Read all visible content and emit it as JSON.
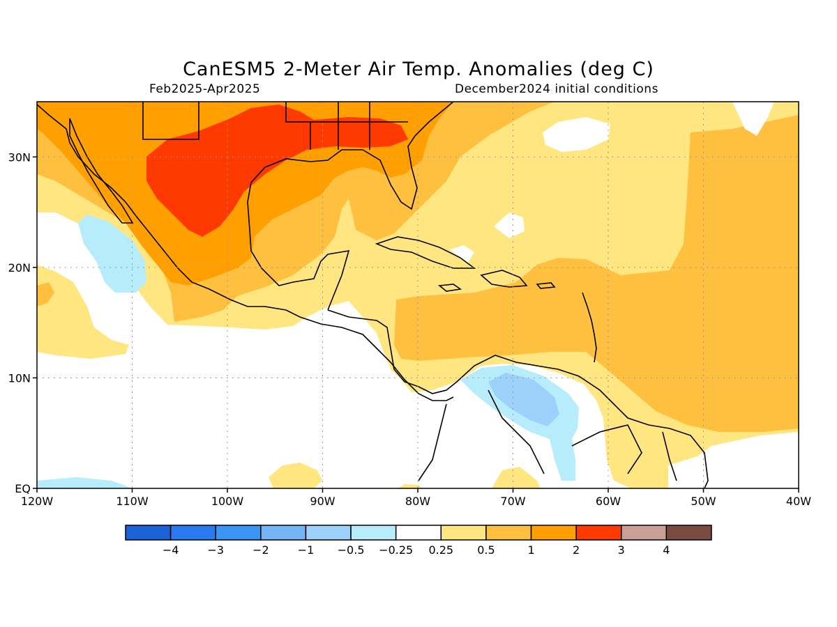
{
  "header": {
    "title": "CanESM5 2-Meter Air Temp. Anomalies (deg C)",
    "period": "Feb2025-Apr2025",
    "initial_conditions": "December2024 initial conditions"
  },
  "map": {
    "region": "Central America / Caribbean / Gulf of Mexico",
    "lon_range": [
      -120,
      -40
    ],
    "lat_range": [
      0,
      35
    ],
    "lon_ticks": [
      {
        "lon": -120,
        "label": "120W"
      },
      {
        "lon": -110,
        "label": "110W"
      },
      {
        "lon": -100,
        "label": "100W"
      },
      {
        "lon": -90,
        "label": "90W"
      },
      {
        "lon": -80,
        "label": "80W"
      },
      {
        "lon": -70,
        "label": "70W"
      },
      {
        "lon": -60,
        "label": "60W"
      },
      {
        "lon": -50,
        "label": "50W"
      },
      {
        "lon": -40,
        "label": "40W"
      }
    ],
    "lat_ticks": [
      {
        "lat": 0,
        "label": "EQ"
      },
      {
        "lat": 10,
        "label": "10N"
      },
      {
        "lat": 20,
        "label": "20N"
      },
      {
        "lat": 30,
        "label": "30N"
      }
    ],
    "grid": true
  },
  "legend": {
    "colors": [
      "#1963d6",
      "#2a79ee",
      "#3c94f4",
      "#76b5f5",
      "#9dd0fb",
      "#b6ecfb",
      "#ffffff",
      "#ffe680",
      "#ffc03f",
      "#ff9f00",
      "#ff3a00",
      "#c99f96",
      "#7a4c41"
    ],
    "labels": [
      "-4",
      "-3",
      "-2",
      "-1",
      "-0.5",
      "-0.25",
      "0.25",
      "0.5",
      "1",
      "2",
      "3",
      "4"
    ]
  },
  "colors": {
    "c_025_05": "#ffe680",
    "c_05_1": "#ffc03f",
    "c_1_2": "#ff9f00",
    "c_2_3": "#ff3a00",
    "c_m05_m025": "#b6ecfb",
    "c_m1_m05": "#9dd0fb"
  }
}
